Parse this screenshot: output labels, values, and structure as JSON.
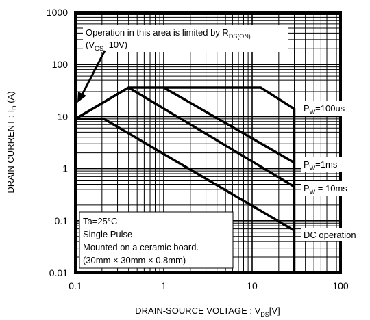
{
  "chart_data": {
    "type": "line",
    "xlabel_main": "DRAIN-SOURCE VOLTAGE : V",
    "xlabel_sub": "DS",
    "xlabel_unit": "[V]",
    "ylabel_main": "DRAIN CURRENT : I",
    "ylabel_sub": "D",
    "ylabel_unit": " (A)",
    "x_scale": "log",
    "y_scale": "log",
    "xlim": [
      0.1,
      100
    ],
    "ylim": [
      0.01,
      1000
    ],
    "grid": true,
    "x_ticks": [
      {
        "v": 0.1,
        "label": "0.1"
      },
      {
        "v": 1,
        "label": "1"
      },
      {
        "v": 10,
        "label": "10"
      },
      {
        "v": 100,
        "label": "100"
      }
    ],
    "y_ticks": [
      {
        "v": 0.01,
        "label": "0.01"
      },
      {
        "v": 0.1,
        "label": "0.1"
      },
      {
        "v": 1,
        "label": "1"
      },
      {
        "v": 10,
        "label": "10"
      },
      {
        "v": 100,
        "label": "100"
      },
      {
        "v": 1000,
        "label": "1000"
      }
    ],
    "series": [
      {
        "label_main": "P",
        "label_sub": "W",
        "label_rest": "=100us",
        "x": [
          0.1,
          0.4,
          12.5,
          30,
          30
        ],
        "y": [
          9,
          36,
          36,
          14,
          0.01
        ]
      },
      {
        "label_main": "P",
        "label_sub": "W",
        "label_rest": "=1ms",
        "x": [
          1,
          30
        ],
        "y": [
          36,
          1.3
        ]
      },
      {
        "label_main": "P",
        "label_sub": "W",
        "label_rest": " = 10ms",
        "x": [
          0.1,
          0.4,
          30
        ],
        "y": [
          9,
          36,
          0.45
        ]
      },
      {
        "label_main": "DC operation",
        "label_sub": "",
        "label_rest": "",
        "x": [
          0.1,
          0.21,
          30
        ],
        "y": [
          9,
          9,
          0.065
        ]
      }
    ],
    "annotations": {
      "rds_line1_main": "Operation in this area is limited by R",
      "rds_line1_sub": "DS(ON)",
      "rds_line2_open": "(V",
      "rds_line2_sub": "GS",
      "rds_line2_rest": "=10V)",
      "conditions": [
        "Ta=25°C",
        "Single Pulse",
        "Mounted on a ceramic board.",
        "(30mm × 30mm × 0.8mm)"
      ]
    }
  }
}
